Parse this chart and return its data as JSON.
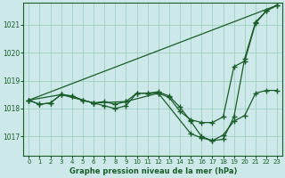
{
  "title": "Graphe pression niveau de la mer (hPa)",
  "background_color": "#cce8e8",
  "grid_color": "#99ccbb",
  "line_color": "#1a5c2a",
  "xlim": [
    -0.5,
    23.5
  ],
  "ylim": [
    1016.3,
    1021.8
  ],
  "yticks": [
    1017,
    1018,
    1019,
    1020,
    1021
  ],
  "xticks": [
    0,
    1,
    2,
    3,
    4,
    5,
    6,
    7,
    8,
    9,
    10,
    11,
    12,
    13,
    14,
    15,
    16,
    17,
    18,
    19,
    20,
    21,
    22,
    23
  ],
  "series": [
    {
      "x": [
        0,
        23
      ],
      "y": [
        1018.3,
        1021.7
      ],
      "marker": null,
      "markersize": 0,
      "linewidth": 0.9
    },
    {
      "x": [
        0,
        1,
        2,
        3,
        4,
        5,
        6,
        7,
        8,
        9,
        10,
        11,
        12,
        13,
        14,
        15,
        16,
        17,
        18,
        19,
        20,
        21,
        22,
        23
      ],
      "y": [
        1018.3,
        1018.15,
        1018.2,
        1018.5,
        1018.45,
        1018.3,
        1018.2,
        1018.25,
        1018.15,
        1018.25,
        1018.55,
        1018.55,
        1018.55,
        1018.4,
        1017.9,
        1017.6,
        1017.5,
        1017.5,
        1017.7,
        1019.5,
        1019.7,
        1021.05,
        1021.5,
        1021.7
      ],
      "marker": "+",
      "markersize": 4,
      "linewidth": 0.9
    },
    {
      "x": [
        0,
        1,
        2,
        3,
        4,
        5,
        6,
        7,
        8,
        9,
        10,
        11,
        12,
        13,
        14,
        15,
        16,
        17,
        18,
        19,
        20,
        21,
        22,
        23
      ],
      "y": [
        1018.3,
        1018.15,
        1018.2,
        1018.5,
        1018.45,
        1018.3,
        1018.2,
        1018.1,
        1018.0,
        1018.1,
        1018.55,
        1018.55,
        1018.6,
        1018.45,
        1018.05,
        1017.55,
        1017.0,
        1016.85,
        1017.05,
        1017.55,
        1017.75,
        1018.55,
        1018.65,
        1018.65
      ],
      "marker": "+",
      "markersize": 4,
      "linewidth": 0.9
    },
    {
      "x": [
        0,
        3,
        6,
        9,
        12,
        15,
        16,
        17,
        18,
        19,
        20,
        21,
        22,
        23
      ],
      "y": [
        1018.3,
        1018.5,
        1018.2,
        1018.25,
        1018.55,
        1017.1,
        1016.95,
        1016.85,
        1016.9,
        1017.7,
        1019.8,
        1021.1,
        1021.5,
        1021.7
      ],
      "marker": "+",
      "markersize": 4,
      "linewidth": 0.9
    }
  ]
}
